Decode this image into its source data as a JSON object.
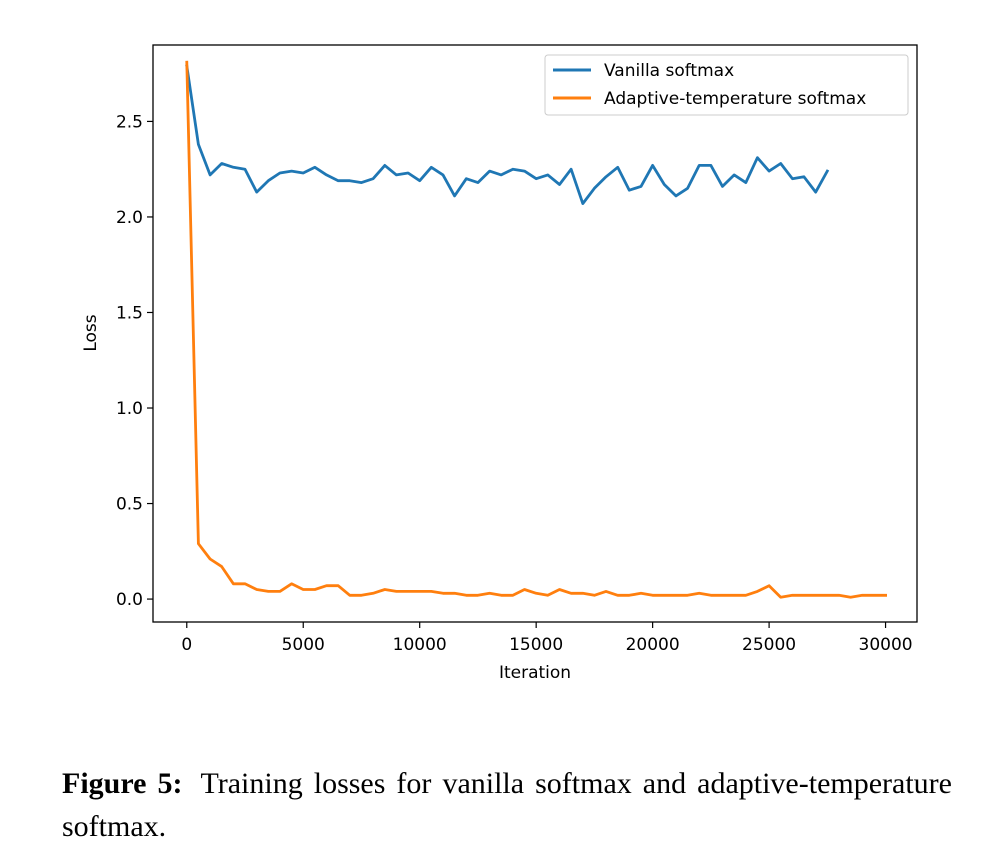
{
  "chart_data": {
    "type": "line",
    "title": "",
    "xlabel": "Iteration",
    "ylabel": "Loss",
    "xlim": [
      -1450,
      31350
    ],
    "ylim": [
      -0.12,
      2.9
    ],
    "xticks": [
      0,
      5000,
      10000,
      15000,
      20000,
      25000,
      30000
    ],
    "xtick_labels": [
      "0",
      "5000",
      "10000",
      "15000",
      "20000",
      "25000",
      "30000"
    ],
    "yticks": [
      0.0,
      0.5,
      1.0,
      1.5,
      2.0,
      2.5
    ],
    "ytick_labels": [
      "0.0",
      "0.5",
      "1.0",
      "1.5",
      "2.0",
      "2.5"
    ],
    "grid": false,
    "legend_position": "upper right",
    "x": [
      0,
      500,
      1000,
      1500,
      2000,
      2500,
      3000,
      3500,
      4000,
      4500,
      5000,
      5500,
      6000,
      6500,
      7000,
      7500,
      8000,
      8500,
      9000,
      9500,
      10000,
      10500,
      11000,
      11500,
      12000,
      12500,
      13000,
      13500,
      14000,
      14500,
      15000,
      15500,
      16000,
      16500,
      17000,
      17500,
      18000,
      18500,
      19000,
      19500,
      20000,
      20500,
      21000,
      21500,
      22000,
      22500,
      23000,
      23500,
      24000,
      24500,
      25000,
      25500,
      26000,
      26500,
      27000,
      27500,
      28000,
      28500,
      29000,
      29500,
      30000
    ],
    "series": [
      {
        "name": "Vanilla softmax",
        "color": "#1f77b4",
        "values": [
          2.79,
          2.38,
          2.22,
          2.28,
          2.26,
          2.25,
          2.13,
          2.19,
          2.23,
          2.24,
          2.23,
          2.26,
          2.22,
          2.19,
          2.19,
          2.18,
          2.2,
          2.27,
          2.22,
          2.23,
          2.19,
          2.26,
          2.22,
          2.11,
          2.2,
          2.18,
          2.24,
          2.22,
          2.25,
          2.24,
          2.2,
          2.22,
          2.17,
          2.25,
          2.07,
          2.15,
          2.21,
          2.26,
          2.14,
          2.16,
          2.27,
          2.17,
          2.11,
          2.15,
          2.27,
          2.27,
          2.16,
          2.22,
          2.18,
          2.31,
          2.24,
          2.28,
          2.2,
          2.21,
          2.13,
          2.24,
          null,
          null,
          null,
          null,
          null
        ]
      },
      {
        "name": "Adaptive-temperature softmax",
        "color": "#ff7f0e",
        "values": [
          2.81,
          0.29,
          0.21,
          0.17,
          0.08,
          0.08,
          0.05,
          0.04,
          0.04,
          0.08,
          0.05,
          0.05,
          0.07,
          0.07,
          0.02,
          0.02,
          0.03,
          0.05,
          0.04,
          0.04,
          0.04,
          0.04,
          0.03,
          0.03,
          0.02,
          0.02,
          0.03,
          0.02,
          0.02,
          0.05,
          0.03,
          0.02,
          0.05,
          0.03,
          0.03,
          0.02,
          0.04,
          0.02,
          0.02,
          0.03,
          0.02,
          0.02,
          0.02,
          0.02,
          0.03,
          0.02,
          0.02,
          0.02,
          0.02,
          0.04,
          0.07,
          0.01,
          0.02,
          0.02,
          0.02,
          0.02,
          0.02,
          0.01,
          0.02,
          0.02,
          0.02
        ]
      }
    ]
  },
  "caption": {
    "label": "Figure 5:",
    "text": "Training losses for vanilla softmax and adaptive-temperature softmax."
  }
}
